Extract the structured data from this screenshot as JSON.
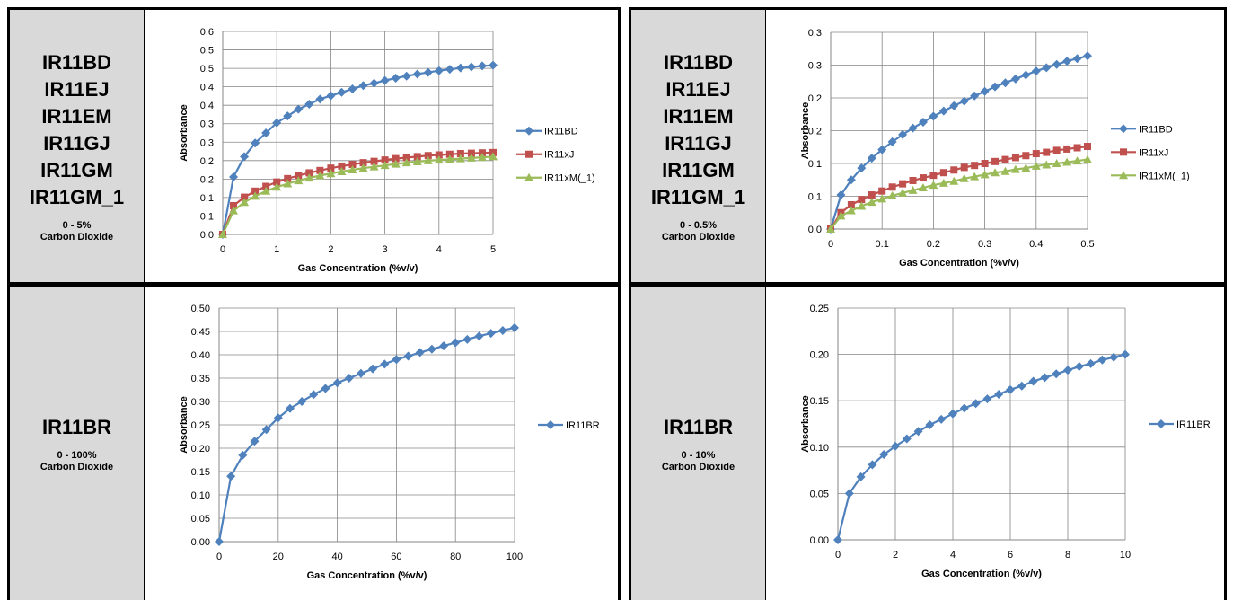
{
  "panels": [
    {
      "models": [
        "IR11BD",
        "IR11EJ",
        "IR11EM",
        "IR11GJ",
        "IR11GM",
        "IR11GM_1"
      ],
      "range": "0 - 5%",
      "gas": "Carbon Dioxide"
    },
    {
      "models": [
        "IR11BD",
        "IR11EJ",
        "IR11EM",
        "IR11GJ",
        "IR11GM",
        "IR11GM_1"
      ],
      "range": "0 - 0.5%",
      "gas": "Carbon Dioxide"
    },
    {
      "models": [
        "IR11BR"
      ],
      "range": "0 - 100%",
      "gas": "Carbon Dioxide"
    },
    {
      "models": [
        "IR11BR"
      ],
      "range": "0 - 10%",
      "gas": "Carbon Dioxide"
    }
  ],
  "chart_data": [
    {
      "type": "line",
      "xlabel": "Gas Concentration (%v/v)",
      "ylabel": "Absorbance",
      "xlim": [
        0,
        5
      ],
      "ylim": [
        0,
        0.6
      ],
      "xticks": [
        "0",
        "1",
        "2",
        "3",
        "4",
        "5"
      ],
      "yticks": [
        "0.0",
        "0.1",
        "0.1",
        "0.2",
        "0.2",
        "0.3",
        "0.3",
        "0.4",
        "0.4",
        "0.5",
        "0.5",
        "0.6"
      ],
      "grid": true,
      "legend_position": "right",
      "x": [
        0,
        0.2,
        0.4,
        0.6,
        0.8,
        1.0,
        1.2,
        1.4,
        1.6,
        1.8,
        2.0,
        2.2,
        2.4,
        2.6,
        2.8,
        3.0,
        3.2,
        3.4,
        3.6,
        3.8,
        4.0,
        4.2,
        4.4,
        4.6,
        4.8,
        5.0
      ],
      "series": [
        {
          "name": "IR11BD",
          "color": "#4f81bd",
          "marker": "diamond",
          "values": [
            0.0,
            0.17,
            0.23,
            0.27,
            0.3,
            0.33,
            0.35,
            0.37,
            0.385,
            0.4,
            0.41,
            0.42,
            0.43,
            0.44,
            0.447,
            0.455,
            0.462,
            0.468,
            0.474,
            0.479,
            0.484,
            0.488,
            0.492,
            0.495,
            0.498,
            0.5
          ]
        },
        {
          "name": "IR11xJ",
          "color": "#c0504d",
          "marker": "square",
          "values": [
            0.0,
            0.085,
            0.11,
            0.128,
            0.142,
            0.155,
            0.165,
            0.174,
            0.182,
            0.189,
            0.196,
            0.202,
            0.207,
            0.212,
            0.216,
            0.22,
            0.224,
            0.227,
            0.23,
            0.233,
            0.235,
            0.237,
            0.239,
            0.24,
            0.241,
            0.242
          ]
        },
        {
          "name": "IR11xM(_1)",
          "color": "#9bbb59",
          "marker": "triangle",
          "values": [
            0.0,
            0.07,
            0.095,
            0.113,
            0.128,
            0.14,
            0.15,
            0.159,
            0.167,
            0.174,
            0.18,
            0.186,
            0.191,
            0.196,
            0.2,
            0.204,
            0.208,
            0.212,
            0.215,
            0.218,
            0.22,
            0.222,
            0.224,
            0.226,
            0.228,
            0.23
          ]
        }
      ]
    },
    {
      "type": "line",
      "xlabel": "Gas Concentration (%v/v)",
      "ylabel": "Absorbance",
      "xlim": [
        0,
        0.5
      ],
      "ylim": [
        0,
        0.3
      ],
      "xticks": [
        "0",
        "0.1",
        "0.2",
        "0.3",
        "0.4",
        "0.5"
      ],
      "yticks": [
        "0.0",
        "0.1",
        "0.1",
        "0.2",
        "0.2",
        "0.3",
        "0.3"
      ],
      "grid": true,
      "legend_position": "right",
      "x": [
        0,
        0.02,
        0.04,
        0.06,
        0.08,
        0.1,
        0.12,
        0.14,
        0.16,
        0.18,
        0.2,
        0.22,
        0.24,
        0.26,
        0.28,
        0.3,
        0.32,
        0.34,
        0.36,
        0.38,
        0.4,
        0.42,
        0.44,
        0.46,
        0.48,
        0.5
      ],
      "series": [
        {
          "name": "IR11BD",
          "color": "#4f81bd",
          "marker": "diamond",
          "values": [
            0.0,
            0.052,
            0.075,
            0.093,
            0.108,
            0.121,
            0.133,
            0.144,
            0.154,
            0.163,
            0.172,
            0.18,
            0.188,
            0.195,
            0.203,
            0.21,
            0.217,
            0.223,
            0.229,
            0.235,
            0.241,
            0.246,
            0.251,
            0.256,
            0.26,
            0.264
          ]
        },
        {
          "name": "IR11xJ",
          "color": "#c0504d",
          "marker": "square",
          "values": [
            0.0,
            0.025,
            0.037,
            0.045,
            0.052,
            0.058,
            0.064,
            0.069,
            0.074,
            0.078,
            0.082,
            0.086,
            0.09,
            0.094,
            0.097,
            0.1,
            0.103,
            0.106,
            0.109,
            0.112,
            0.115,
            0.117,
            0.12,
            0.122,
            0.124,
            0.126
          ]
        },
        {
          "name": "IR11xM(_1)",
          "color": "#9bbb59",
          "marker": "triangle",
          "values": [
            0.0,
            0.02,
            0.028,
            0.035,
            0.041,
            0.046,
            0.051,
            0.055,
            0.059,
            0.063,
            0.067,
            0.07,
            0.073,
            0.077,
            0.08,
            0.083,
            0.086,
            0.088,
            0.091,
            0.093,
            0.096,
            0.098,
            0.1,
            0.102,
            0.104,
            0.106
          ]
        }
      ]
    },
    {
      "type": "line",
      "xlabel": "Gas Concentration (%v/v)",
      "ylabel": "Absorbance",
      "xlim": [
        0,
        100
      ],
      "ylim": [
        0,
        0.5
      ],
      "xticks": [
        "0",
        "20",
        "40",
        "60",
        "80",
        "100"
      ],
      "yticks": [
        "0.00",
        "0.05",
        "0.10",
        "0.15",
        "0.20",
        "0.25",
        "0.30",
        "0.35",
        "0.40",
        "0.45",
        "0.50"
      ],
      "grid": true,
      "legend_position": "right",
      "x": [
        0,
        4,
        8,
        12,
        16,
        20,
        24,
        28,
        32,
        36,
        40,
        44,
        48,
        52,
        56,
        60,
        64,
        68,
        72,
        76,
        80,
        84,
        88,
        92,
        96,
        100
      ],
      "series": [
        {
          "name": "IR11BR",
          "color": "#4f81bd",
          "marker": "diamond",
          "values": [
            0.0,
            0.14,
            0.185,
            0.215,
            0.24,
            0.265,
            0.285,
            0.3,
            0.315,
            0.328,
            0.34,
            0.35,
            0.36,
            0.37,
            0.38,
            0.39,
            0.397,
            0.405,
            0.412,
            0.419,
            0.426,
            0.433,
            0.44,
            0.446,
            0.452,
            0.458
          ]
        }
      ]
    },
    {
      "type": "line",
      "xlabel": "Gas Concentration (%v/v)",
      "ylabel": "Absorbance",
      "xlim": [
        0,
        10
      ],
      "ylim": [
        0,
        0.25
      ],
      "xticks": [
        "0",
        "2",
        "4",
        "6",
        "8",
        "10"
      ],
      "yticks": [
        "0.00",
        "0.05",
        "0.10",
        "0.15",
        "0.20",
        "0.25"
      ],
      "grid": true,
      "legend_position": "right",
      "x": [
        0,
        0.4,
        0.8,
        1.2,
        1.6,
        2.0,
        2.4,
        2.8,
        3.2,
        3.6,
        4.0,
        4.4,
        4.8,
        5.2,
        5.6,
        6.0,
        6.4,
        6.8,
        7.2,
        7.6,
        8.0,
        8.4,
        8.8,
        9.2,
        9.6,
        10.0
      ],
      "series": [
        {
          "name": "IR11BR",
          "color": "#4f81bd",
          "marker": "diamond",
          "values": [
            0.0,
            0.05,
            0.068,
            0.081,
            0.092,
            0.101,
            0.109,
            0.117,
            0.124,
            0.13,
            0.136,
            0.142,
            0.147,
            0.152,
            0.157,
            0.162,
            0.166,
            0.171,
            0.175,
            0.179,
            0.183,
            0.187,
            0.19,
            0.194,
            0.197,
            0.2
          ]
        }
      ]
    }
  ]
}
